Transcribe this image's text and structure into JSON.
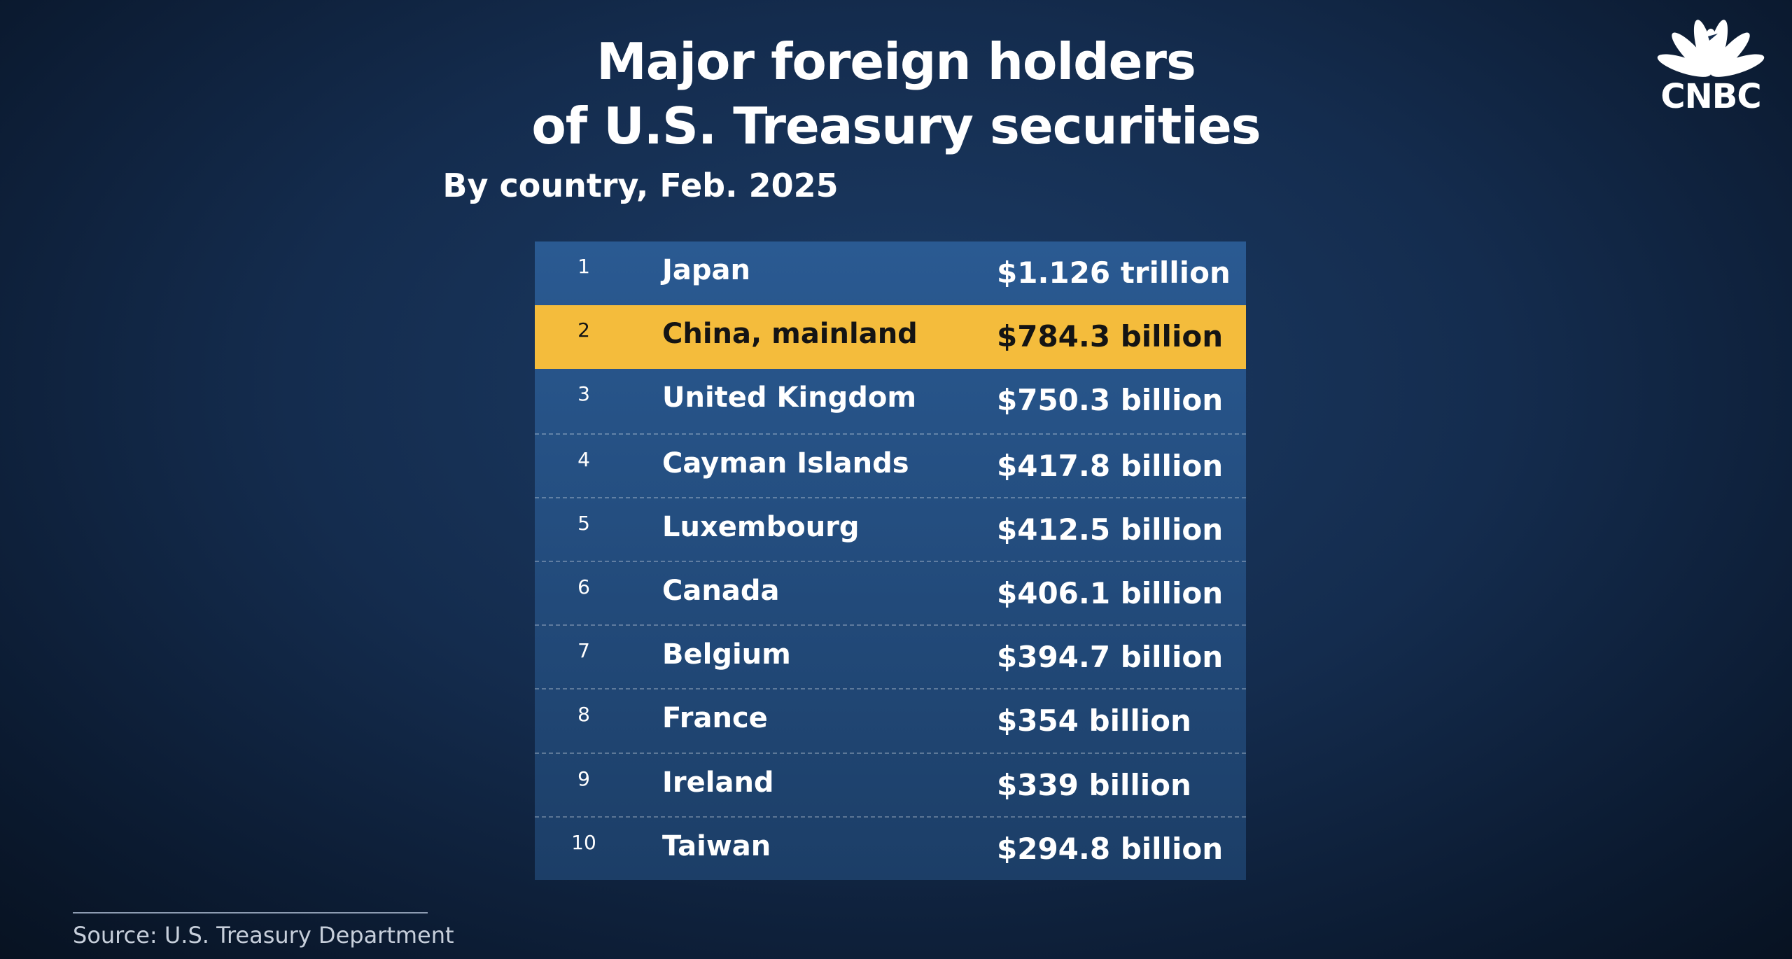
{
  "header": {
    "title_line1": "Major foreign holders",
    "title_line2": "of U.S. Treasury securities",
    "subtitle": "By country, Feb. 2025"
  },
  "logo": {
    "text": "CNBC",
    "icon": "peacock-icon"
  },
  "footer": {
    "source": "Source: U.S. Treasury Department"
  },
  "colors": {
    "highlight": "#f4bc3c",
    "table": "#234c7d",
    "background": "#142c4e"
  },
  "chart_data": {
    "type": "table",
    "title": "Major foreign holders of U.S. Treasury securities",
    "subtitle": "By country, Feb. 2025",
    "highlighted_rank": "2",
    "rows": [
      {
        "rank": "1",
        "country": "Japan",
        "value": "$1.126 trillion"
      },
      {
        "rank": "2",
        "country": "China, mainland",
        "value": "$784.3 billion"
      },
      {
        "rank": "3",
        "country": "United Kingdom",
        "value": "$750.3 billion"
      },
      {
        "rank": "4",
        "country": "Cayman Islands",
        "value": "$417.8 billion"
      },
      {
        "rank": "5",
        "country": "Luxembourg",
        "value": "$412.5 billion"
      },
      {
        "rank": "6",
        "country": "Canada",
        "value": "$406.1 billion"
      },
      {
        "rank": "7",
        "country": "Belgium",
        "value": "$394.7 billion"
      },
      {
        "rank": "8",
        "country": "France",
        "value": "$354 billion"
      },
      {
        "rank": "9",
        "country": "Ireland",
        "value": "$339 billion"
      },
      {
        "rank": "10",
        "country": "Taiwan",
        "value": "$294.8 billion"
      }
    ]
  }
}
